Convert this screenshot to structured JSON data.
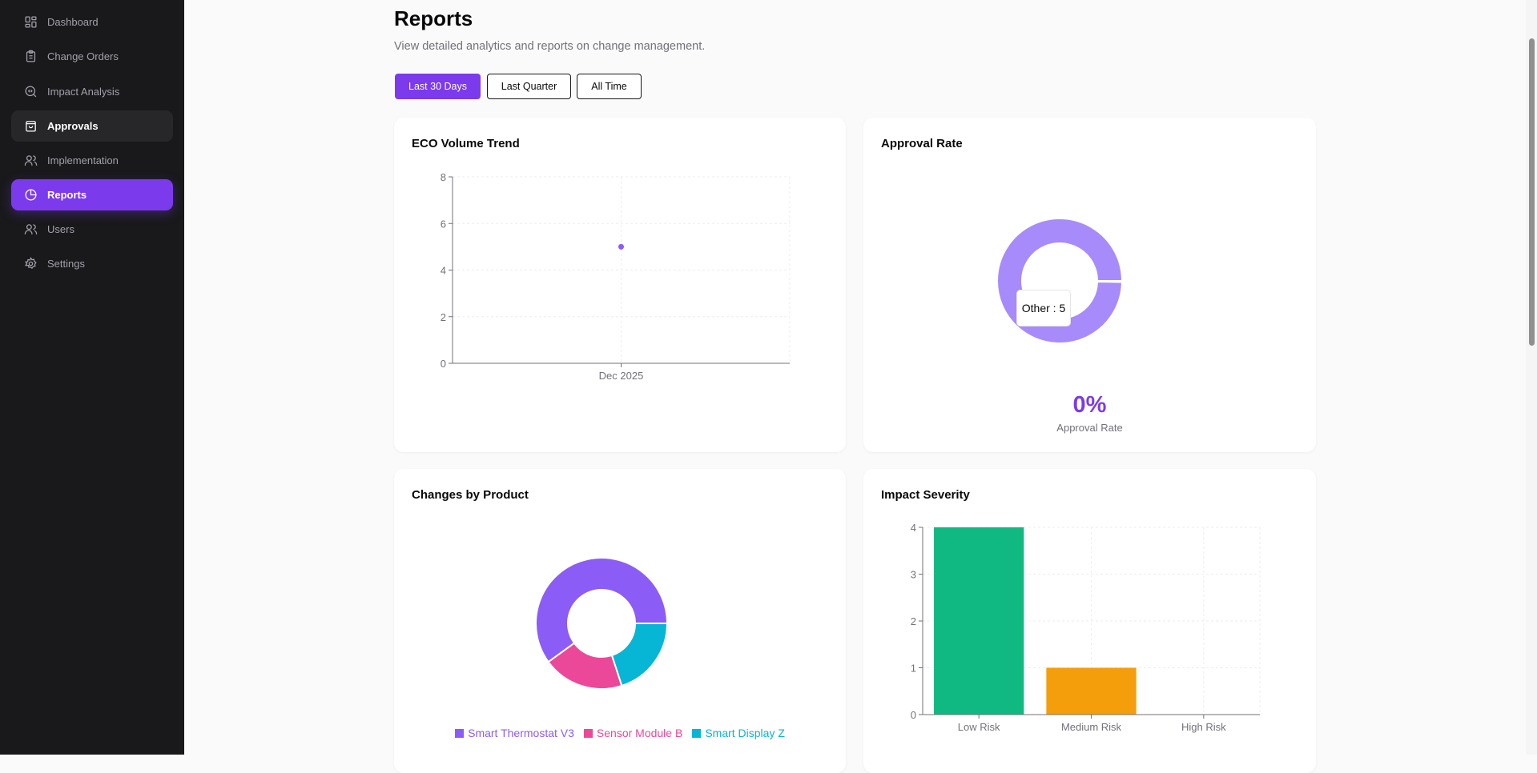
{
  "sidebar": {
    "items": [
      {
        "label": "Dashboard",
        "icon": "dashboard-icon"
      },
      {
        "label": "Change Orders",
        "icon": "clipboard-icon"
      },
      {
        "label": "Impact Analysis",
        "icon": "search-code-icon"
      },
      {
        "label": "Approvals",
        "icon": "shopping-bag-icon",
        "state": "hover"
      },
      {
        "label": "Implementation",
        "icon": "users-icon"
      },
      {
        "label": "Reports",
        "icon": "pie-chart-icon",
        "state": "active"
      },
      {
        "label": "Users",
        "icon": "users-icon"
      },
      {
        "label": "Settings",
        "icon": "gear-icon"
      }
    ]
  },
  "header": {
    "title": "Reports",
    "subtitle": "View detailed analytics and reports on change management."
  },
  "filters": [
    {
      "label": "Last 30 Days",
      "active": true
    },
    {
      "label": "Last Quarter"
    },
    {
      "label": "All Time"
    }
  ],
  "colors": {
    "accent": "#7c3aed"
  },
  "cards": {
    "eco": "ECO Volume Trend",
    "approval": "Approval Rate",
    "product": "Changes by Product",
    "impact": "Impact Severity"
  },
  "approval": {
    "value": "0%",
    "label": "Approval Rate",
    "tooltip": "Other : 5"
  },
  "chart_data": [
    {
      "type": "line",
      "title": "ECO Volume Trend",
      "x": [
        "Dec 2025"
      ],
      "series": [
        {
          "values": [
            5
          ],
          "color": "#8b5cf6"
        }
      ],
      "ylim": [
        0,
        8
      ],
      "yticks": [
        "0",
        "2",
        "4",
        "6",
        "8"
      ],
      "grid": true
    },
    {
      "type": "pie",
      "title": "Approval Rate",
      "categories": [
        "Other"
      ],
      "values": [
        5
      ],
      "colors": [
        "#a78bfa"
      ],
      "donut": true
    },
    {
      "type": "pie",
      "title": "Changes by Product",
      "categories": [
        "Smart Thermostat V3",
        "Sensor Module B",
        "Smart Display Z"
      ],
      "values": [
        3,
        1,
        1
      ],
      "colors": [
        "#8b5cf6",
        "#ec4899",
        "#06b6d4"
      ],
      "donut": true,
      "legend": "bottom"
    },
    {
      "type": "bar",
      "title": "Impact Severity",
      "categories": [
        "Low Risk",
        "Medium Risk",
        "High Risk"
      ],
      "values": [
        4,
        1,
        0
      ],
      "colors": [
        "#10b981",
        "#f59e0b",
        "#ef4444"
      ],
      "ylim": [
        0,
        4
      ],
      "yticks": [
        "0",
        "1",
        "2",
        "3",
        "4"
      ],
      "grid": true
    }
  ]
}
